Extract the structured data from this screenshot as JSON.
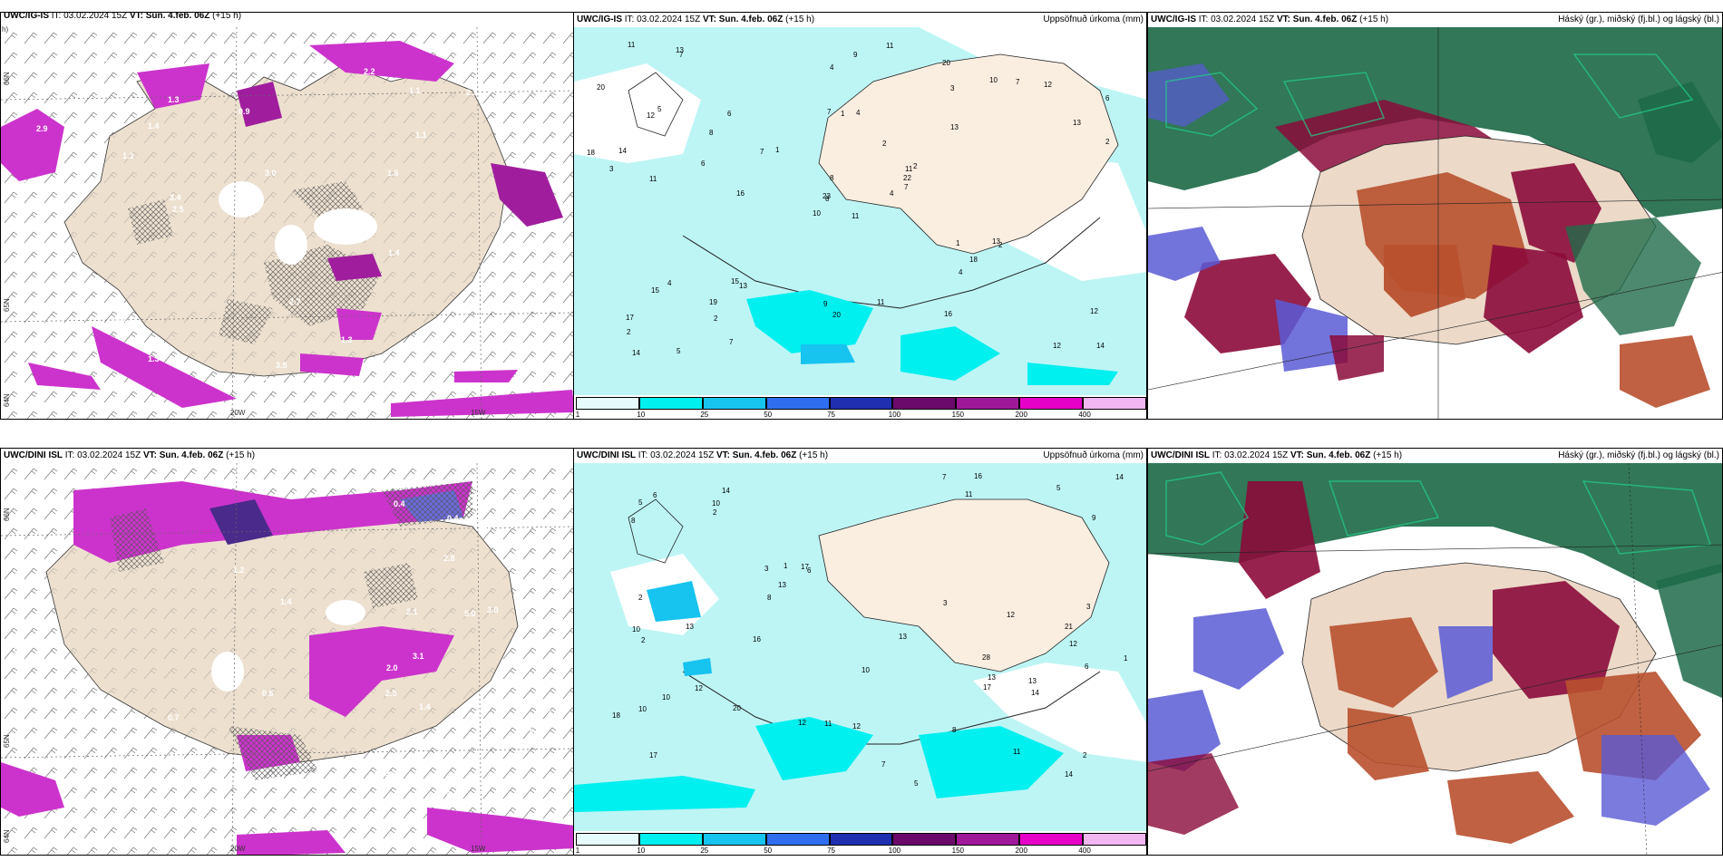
{
  "colors": {
    "land": "#ede0cf",
    "precip_light": "#bdf5f5",
    "precip_cyan": "#00efef",
    "pink": "#cc33cc",
    "purple_dark": "#7a1a7a",
    "cloud_high": "#1f6b4a",
    "cloud_mid": "#8b0a3a",
    "cloud_low": "#5a5ad6",
    "cloud_rust": "#b8502e"
  },
  "panels": {
    "tl": {
      "header_model": "UWC/IG-IS",
      "header_rest": " IT: 03.02.2024 15Z ",
      "header_vt": "VT: Sun. 4.feb. 06Z",
      "header_lead": " (+15 h)",
      "header_clip": "h)"
    },
    "tm": {
      "header_model": "UWC/IG-IS",
      "header_rest": " IT: 03.02.2024 15Z ",
      "header_vt": "VT: Sun. 4.feb. 06Z",
      "header_lead": " (+15 h)",
      "right_title": "Uppsöfnuð úrkoma (mm)"
    },
    "tr": {
      "header_model": "UWC/IG-IS",
      "header_rest": " IT: 03.02.2024 15Z ",
      "header_vt": "VT: Sun. 4.feb. 06Z",
      "header_lead": " (+15 h)",
      "right_title": "Háský (gr.), miðský (fj.bl.) og lágský (bl.)"
    },
    "bl": {
      "header_model": "UWC/DINI ISL",
      "header_rest": " IT: 03.02.2024 15Z ",
      "header_vt": "VT: Sun. 4.feb. 06Z",
      "header_lead": " (+15 h)"
    },
    "bm": {
      "header_model": "UWC/DINI ISL",
      "header_rest": " IT: 03.02.2024 15Z ",
      "header_vt": "VT: Sun. 4.feb. 06Z",
      "header_lead": " (+15 h)",
      "right_title": "Uppsöfnuð úrkoma (mm)"
    },
    "br": {
      "header_model": "UWC/DINI ISL",
      "header_rest": " IT: 03.02.2024 15Z ",
      "header_vt": "VT: Sun. 4.feb. 06Z",
      "header_lead": " (+15 h)",
      "right_title": "Háský (gr.), miðský (fj.bl.) og lágský (bl.)"
    }
  },
  "axes": {
    "lon_20": "20W",
    "lon_15": "15W",
    "lat_66": "66N",
    "lat_65": "65N",
    "lat_64": "64N"
  },
  "colorbar": {
    "ticks": [
      "1",
      "10",
      "25",
      "50",
      "75",
      "100",
      "150",
      "200",
      "400"
    ],
    "colors": [
      "#e6fbfb",
      "#00efef",
      "#17c3ef",
      "#2f6fef",
      "#1f2fb0",
      "#6b0a6b",
      "#a0189a",
      "#e600c8",
      "#f2b6f2"
    ]
  },
  "precip_labels_top": [
    "11",
    "12",
    "8",
    "17",
    "11",
    "13",
    "20",
    "4",
    "3",
    "4",
    "7",
    "14",
    "11",
    "6",
    "10",
    "13",
    "5",
    "7",
    "2",
    "4",
    "1",
    "2",
    "2",
    "1",
    "2",
    "2",
    "5",
    "4",
    "3",
    "1",
    "2",
    "23",
    "9",
    "8",
    "6",
    "10",
    "15",
    "12",
    "12",
    "13",
    "11",
    "7",
    "6",
    "4",
    "7",
    "18",
    "22",
    "14",
    "20",
    "7",
    "15",
    "13",
    "20",
    "18",
    "16",
    "19",
    "13",
    "11",
    "11",
    "12",
    "9",
    "16",
    "14",
    "8",
    "7"
  ],
  "precip_labels_bottom": [
    "28",
    "12",
    "17",
    "14",
    "6",
    "11",
    "10",
    "11",
    "3",
    "5",
    "8",
    "10",
    "5",
    "2",
    "12",
    "3",
    "10",
    "13",
    "17",
    "12",
    "14",
    "5",
    "8",
    "6",
    "7",
    "10",
    "13",
    "2",
    "2",
    "12",
    "7",
    "8",
    "13",
    "16",
    "21",
    "14",
    "17",
    "13",
    "12",
    "10",
    "9",
    "16",
    "14",
    "11",
    "13",
    "20",
    "18",
    "6",
    "3",
    "2",
    "1",
    "1"
  ],
  "ml_labels_top": [
    "2.9",
    "1.4",
    "1.6",
    "3.5",
    "2.9",
    "2.8",
    "1.4",
    "2.5",
    "1.9",
    "2.7",
    "3.2",
    "1.3",
    "1.1",
    "6.1",
    "2.2",
    "1.3",
    "3.4",
    "0.9",
    "0.7",
    "1.3",
    "1.0",
    "1.4",
    "3.0",
    "2.7",
    "1.1",
    "1.3",
    "1.8",
    "2.2",
    "2.3"
  ],
  "ml_labels_bottom": [
    "2.5",
    "3.4",
    "5.0",
    "6.7",
    "3.3",
    "2.8",
    "3.0",
    "1.4",
    "3.5",
    "2.4",
    "3.1",
    "2.0",
    "1.3",
    "1.4",
    "0.7",
    "1.0",
    "1.0",
    "0.9",
    "0.4",
    "1.2",
    "0.6",
    "0.5",
    "2.1",
    "0.4"
  ]
}
